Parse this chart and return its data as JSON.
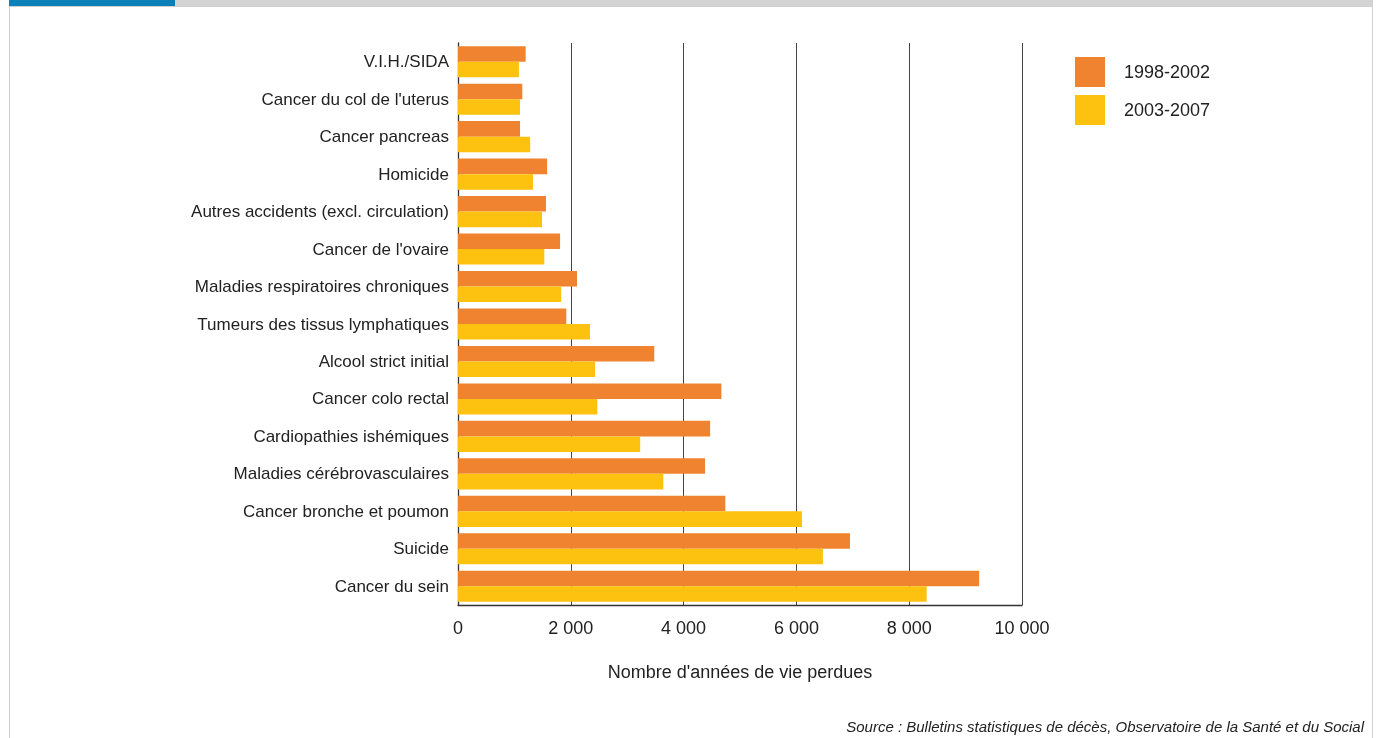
{
  "chart_data": {
    "type": "bar",
    "orientation": "horizontal",
    "xlabel": "Nombre d'années de vie perdues",
    "categories": [
      "V.I.H./SIDA",
      "Cancer du col de l'uterus",
      "Cancer pancreas",
      "Homicide",
      "Autres accidents (excl. circulation)",
      "Cancer de l'ovaire",
      "Maladies respiratoires chroniques",
      "Tumeurs des tissus lymphatiques",
      "Alcool strict initial",
      "Cancer colo rectal",
      "Cardiopathies ishémiques",
      "Maladies cérébrovasculaires",
      "Cancer bronche et poumon",
      "Suicide",
      "Cancer du sein"
    ],
    "series": [
      {
        "name": "1998-2002",
        "color": "#f0832f",
        "values": [
          1200,
          1140,
          1100,
          1580,
          1560,
          1810,
          2110,
          1920,
          3480,
          4670,
          4470,
          4380,
          4740,
          6950,
          9240
        ]
      },
      {
        "name": "2003-2007",
        "color": "#fdc210",
        "values": [
          1080,
          1100,
          1280,
          1330,
          1490,
          1530,
          1830,
          2340,
          2430,
          2470,
          3230,
          3640,
          6100,
          6470,
          8310
        ]
      }
    ],
    "xlim": [
      0,
      10000
    ],
    "xticks": [
      0,
      {
        "value": 2000,
        "label": "2 000"
      },
      {
        "value": 4000,
        "label": "4 000"
      },
      {
        "value": 6000,
        "label": "6 000"
      },
      {
        "value": 8000,
        "label": "8 000"
      },
      {
        "value": 10000,
        "label": "10 000"
      }
    ],
    "grid": "x",
    "legend": "top right",
    "annotations": [
      "Source : Bulletins statistiques de décès, Observatoire de la Santé et du Social"
    ]
  }
}
